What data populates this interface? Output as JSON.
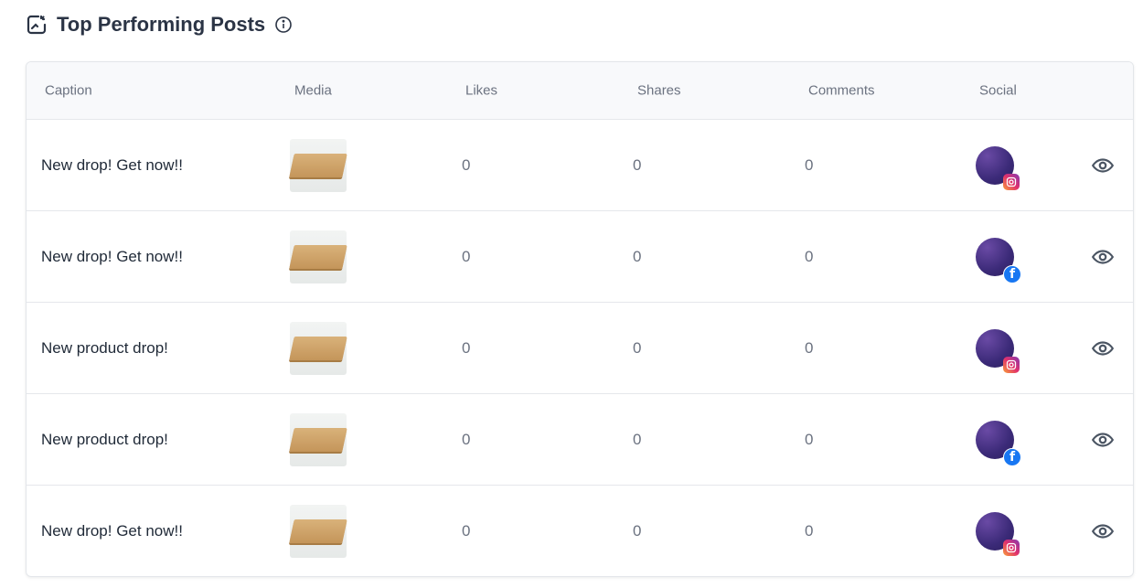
{
  "title": "Top Performing Posts",
  "columns": [
    "Caption",
    "Media",
    "Likes",
    "Shares",
    "Comments",
    "Social"
  ],
  "rows": [
    {
      "caption": "New drop! Get now!!",
      "likes": "0",
      "shares": "0",
      "comments": "0",
      "social": "instagram"
    },
    {
      "caption": "New drop! Get now!!",
      "likes": "0",
      "shares": "0",
      "comments": "0",
      "social": "facebook"
    },
    {
      "caption": "New product drop!",
      "likes": "0",
      "shares": "0",
      "comments": "0",
      "social": "instagram"
    },
    {
      "caption": "New product drop!",
      "likes": "0",
      "shares": "0",
      "comments": "0",
      "social": "facebook"
    },
    {
      "caption": "New drop! Get now!!",
      "likes": "0",
      "shares": "0",
      "comments": "0",
      "social": "instagram"
    }
  ]
}
